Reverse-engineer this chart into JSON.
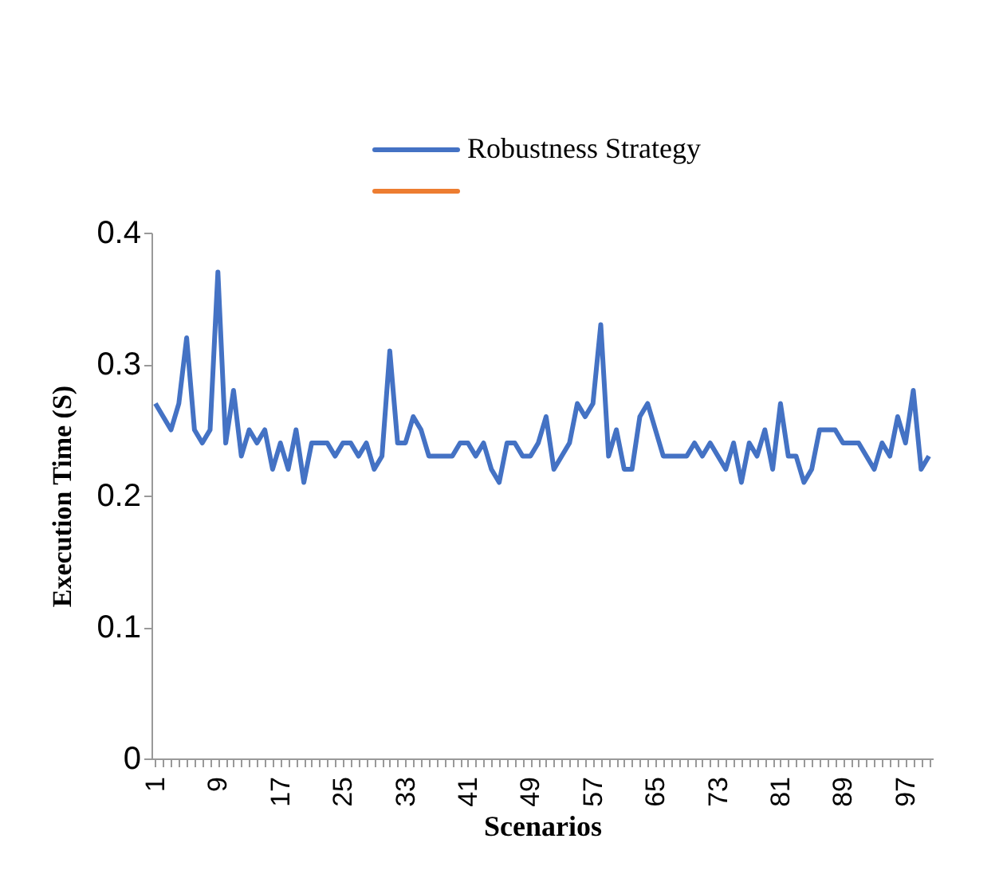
{
  "chart_data": {
    "type": "line",
    "xlabel": "Scenarios",
    "ylabel": "Execution Time (S)",
    "categories": [
      "1",
      null,
      null,
      null,
      null,
      null,
      null,
      null,
      "9",
      null,
      null,
      null,
      null,
      null,
      null,
      null,
      "17",
      null,
      null,
      null,
      null,
      null,
      null,
      null,
      "25",
      null,
      null,
      null,
      null,
      null,
      null,
      null,
      "33",
      null,
      null,
      null,
      null,
      null,
      null,
      null,
      "41",
      null,
      null,
      null,
      null,
      null,
      null,
      null,
      "49",
      null,
      null,
      null,
      null,
      null,
      null,
      null,
      "57",
      null,
      null,
      null,
      null,
      null,
      null,
      null,
      "65",
      null,
      null,
      null,
      null,
      null,
      null,
      null,
      "73",
      null,
      null,
      null,
      null,
      null,
      null,
      null,
      "81",
      null,
      null,
      null,
      null,
      null,
      null,
      null,
      "89",
      null,
      null,
      null,
      null,
      null,
      null,
      null,
      "97",
      null,
      null,
      null
    ],
    "series": [
      {
        "name": "Robustness Strategy",
        "color": "#4472c4",
        "values": [
          0.27,
          0.26,
          0.25,
          0.27,
          0.32,
          0.25,
          0.24,
          0.25,
          0.37,
          0.24,
          0.28,
          0.23,
          0.25,
          0.24,
          0.25,
          0.22,
          0.24,
          0.22,
          0.25,
          0.21,
          0.24,
          0.24,
          0.24,
          0.23,
          0.24,
          0.24,
          0.23,
          0.24,
          0.22,
          0.23,
          0.31,
          0.24,
          0.24,
          0.26,
          0.25,
          0.23,
          0.23,
          0.23,
          0.23,
          0.24,
          0.24,
          0.23,
          0.24,
          0.22,
          0.21,
          0.24,
          0.24,
          0.23,
          0.23,
          0.24,
          0.26,
          0.22,
          0.23,
          0.24,
          0.27,
          0.26,
          0.27,
          0.33,
          0.23,
          0.25,
          0.22,
          0.22,
          0.26,
          0.27,
          0.25,
          0.23,
          0.23,
          0.23,
          0.23,
          0.24,
          0.23,
          0.24,
          0.23,
          0.22,
          0.24,
          0.21,
          0.24,
          0.23,
          0.25,
          0.22,
          0.27,
          0.23,
          0.23,
          0.21,
          0.22,
          0.25,
          0.25,
          0.25,
          0.24,
          0.24,
          0.24,
          0.23,
          0.22,
          0.24,
          0.23,
          0.26,
          0.24,
          0.28,
          0.22,
          0.23
        ]
      },
      {
        "color": "#ed7d31",
        "values": [
          null,
          null,
          null,
          null,
          null,
          null,
          null,
          null,
          null,
          null,
          null,
          null,
          null,
          null,
          null,
          null,
          null,
          null,
          null,
          null,
          null,
          null,
          null,
          null,
          null,
          null,
          null,
          null,
          null,
          null,
          null,
          null,
          null,
          null,
          null,
          null,
          null,
          null,
          null,
          null,
          null,
          null,
          null,
          null,
          null,
          null,
          null,
          null,
          null,
          null,
          null,
          null,
          null,
          null,
          null,
          null,
          null,
          null,
          null,
          null,
          null,
          null,
          null,
          null,
          null,
          null,
          null,
          null,
          null,
          null,
          null,
          null,
          null,
          null,
          null,
          null,
          null,
          null,
          null,
          null,
          null,
          null,
          null,
          null,
          null,
          null,
          null,
          null,
          null,
          null,
          null,
          null,
          null,
          null,
          null,
          null,
          null,
          null,
          null,
          null
        ]
      }
    ],
    "ylim": [
      0,
      0.4
    ],
    "yticks": [
      0,
      0.1,
      0.2,
      0.3,
      0.4
    ],
    "grid": false,
    "legend": "top",
    "marker": "none",
    "line_style": "solid"
  }
}
